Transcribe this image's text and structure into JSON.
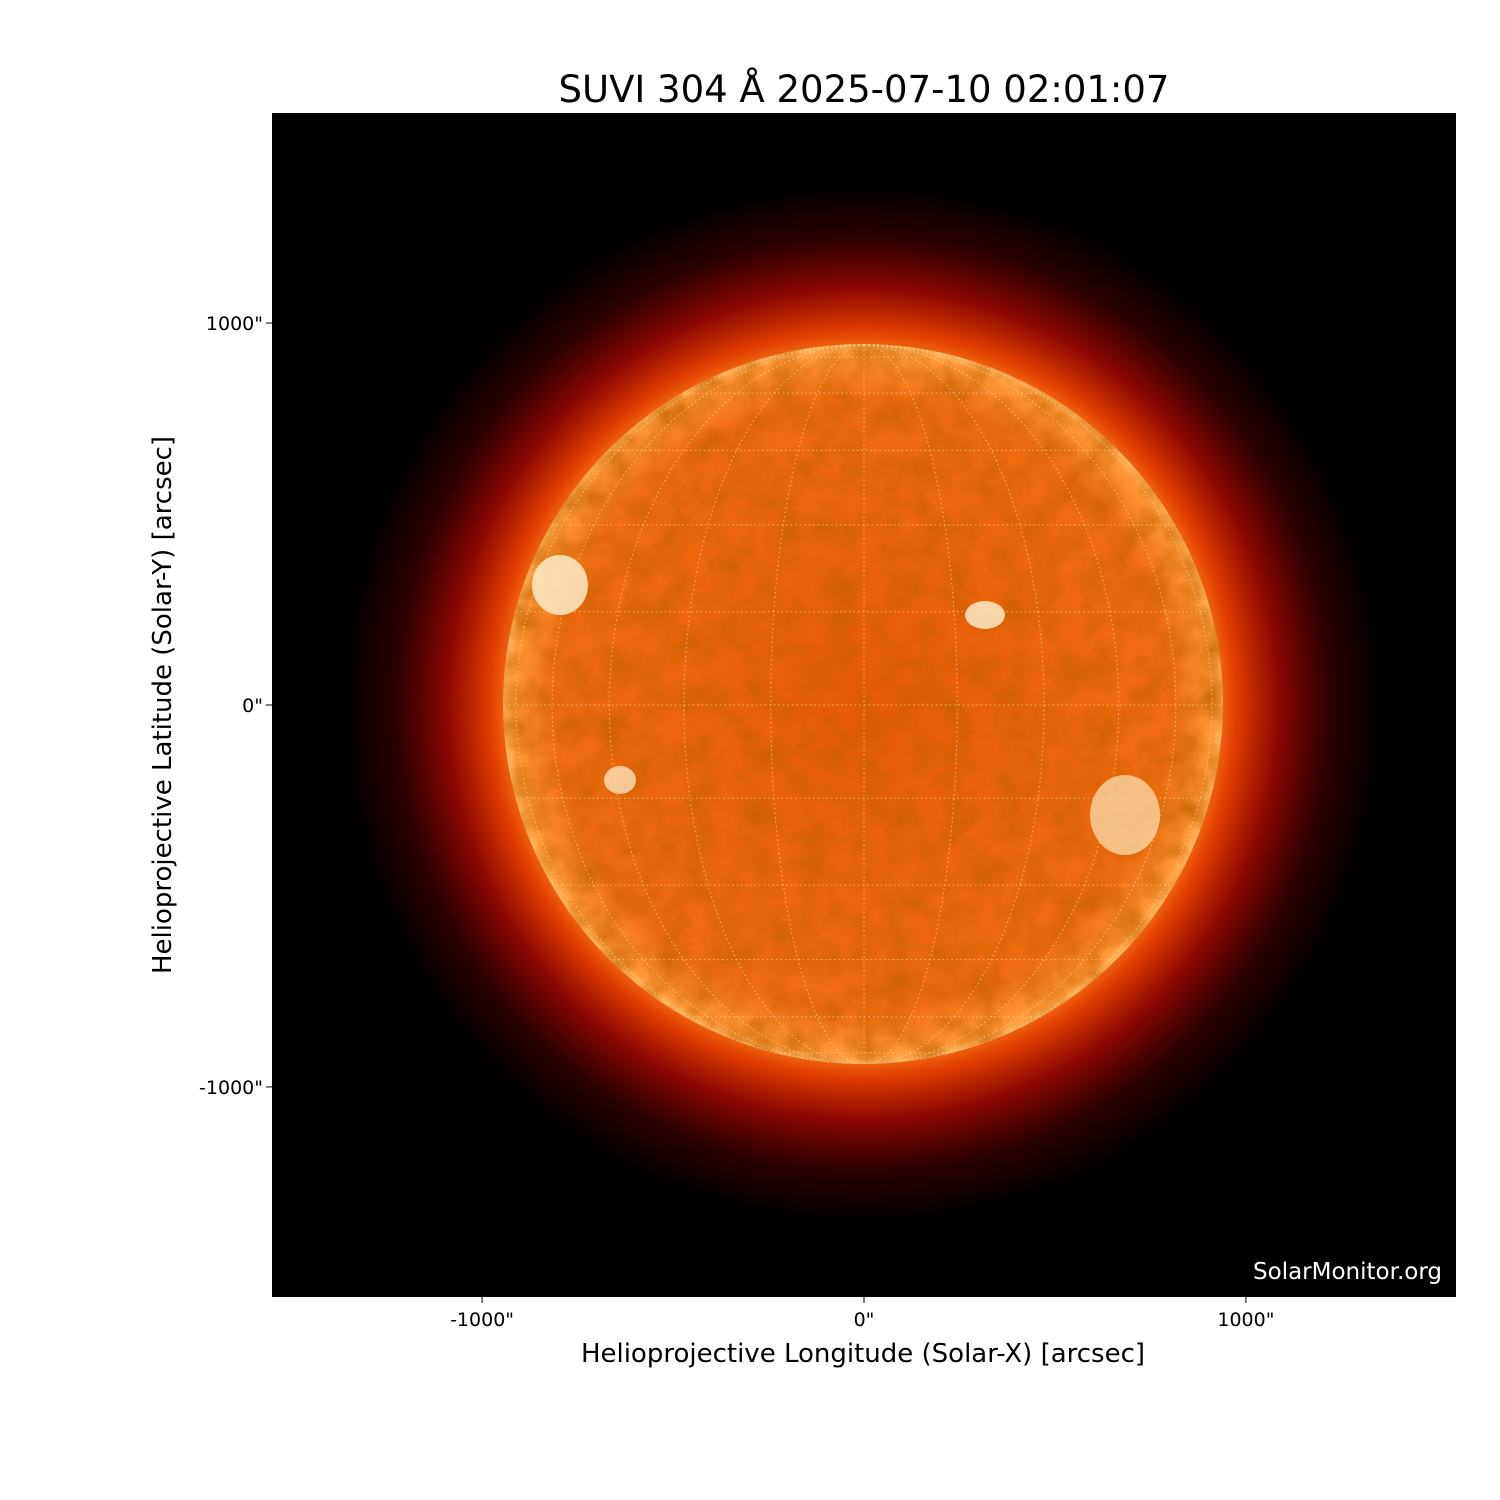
{
  "title": "SUVI 304 Å 2025-07-10 02:01:07",
  "watermark": "SolarMonitor.org",
  "chart_data": {
    "type": "image",
    "title": "SUVI 304 Å 2025-07-10 02:01:07",
    "xlabel": "Helioprojective Longitude (Solar-X) [arcsec]",
    "ylabel": "Helioprojective Latitude (Solar-Y) [arcsec]",
    "xlim": [
      -1550,
      1550
    ],
    "ylim": [
      -1550,
      1550
    ],
    "xticks": [
      {
        "value": -1000,
        "label": "-1000\""
      },
      {
        "value": 0,
        "label": "0\""
      },
      {
        "value": 1000,
        "label": "1000\""
      }
    ],
    "yticks": [
      {
        "value": 1000,
        "label": "1000\""
      },
      {
        "value": 0,
        "label": "0\""
      },
      {
        "value": -1000,
        "label": "-1000\""
      }
    ],
    "solar_radius_arcsec": 943,
    "grid": "heliographic lat/lon every 15°, dotted",
    "colormap": "sdoaia304 (black-red-orange-white)",
    "colors": {
      "background": "#000000",
      "disk": "#f06a10",
      "limb": "#ffb060",
      "corona": "#a01000"
    }
  }
}
